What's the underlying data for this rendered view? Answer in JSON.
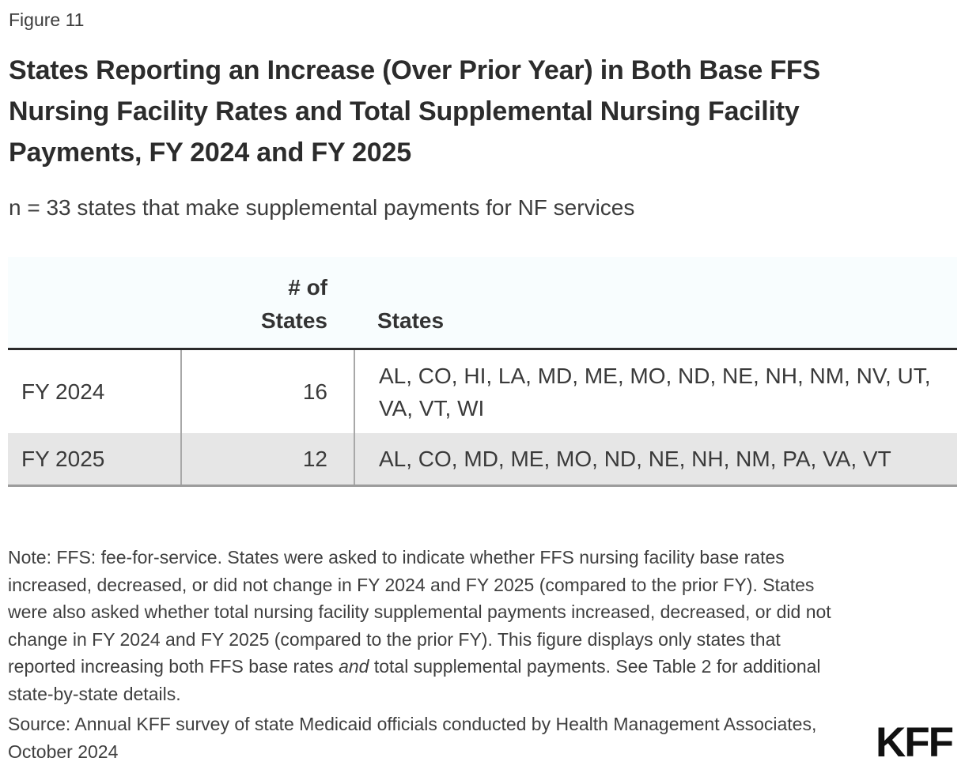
{
  "figure": {
    "label": "Figure 11",
    "title": "States Reporting an Increase (Over Prior Year) in Both Base FFS Nursing Facility Rates and Total Supplemental Nursing Facility Payments, FY 2024 and FY 2025",
    "subtitle": "n = 33 states that make supplemental payments for NF services"
  },
  "chart_data": {
    "type": "table",
    "title": "States Reporting an Increase (Over Prior Year) in Both Base FFS Nursing Facility Rates and Total Supplemental Nursing Facility Payments, FY 2024 and FY 2025",
    "subtitle": "n = 33 states that make supplemental payments for NF services",
    "columns": [
      "",
      "# of States",
      "States"
    ],
    "rows": [
      {
        "label": "FY 2024",
        "count": "16",
        "states": "AL, CO, HI, LA, MD, ME, MO, ND, NE, NH, NM, NV, UT, VA, VT, WI"
      },
      {
        "label": "FY 2025",
        "count": "12",
        "states": "AL, CO, MD, ME, MO, ND, NE, NH, NM, PA, VA, VT"
      }
    ]
  },
  "note": {
    "prefix": "Note: FFS: fee-for-service. States were asked to indicate whether FFS nursing facility base rates increased, decreased, or did not change in FY 2024 and FY 2025 (compared to the prior FY). States were also asked whether total nursing facility supplemental payments increased, decreased, or did not change in FY 2024 and FY 2025 (compared to the prior FY). This figure displays only states that reported increasing both FFS base rates ",
    "italic": "and",
    "suffix": " total supplemental payments. See Table 2 for additional state-by-state details."
  },
  "source": {
    "text": "Source: Annual KFF survey of state Medicaid officials conducted by Health Management Associates, October 2024"
  },
  "branding": {
    "logo_text": "KFF"
  },
  "colors": {
    "header_bg": "#f8fdfe",
    "alt_row_bg": "#e6e6e6",
    "header_border": "#2b2b2b",
    "bottom_border": "#9c9c9c",
    "column_divider": "#a8a8a8",
    "title_text": "#2c2c2c",
    "body_text": "#3a3a3a"
  }
}
